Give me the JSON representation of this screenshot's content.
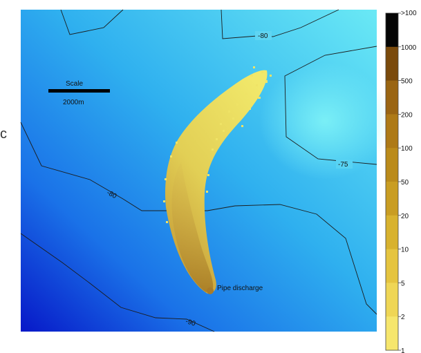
{
  "panel_label": "c",
  "scale_bar": {
    "title": "Scale",
    "distance": "2000m"
  },
  "annotation": "Pipe discharge",
  "contours": [
    {
      "label": "-80"
    },
    {
      "label": "-75"
    },
    {
      "label": "-80"
    },
    {
      "label": "-90"
    }
  ],
  "colorbar": {
    "tick_labels": [
      ">100",
      "1000",
      "500",
      "200",
      "100",
      "50",
      "20",
      "10",
      "5",
      "2",
      "1"
    ],
    "colors": [
      "#050505",
      "#7a4a0c",
      "#9a6512",
      "#ae7a16",
      "#bb8b1a",
      "#c99d22",
      "#d8b22e",
      "#e5c43f",
      "#efd655",
      "#f6e66c",
      "#fdf982"
    ]
  },
  "colors": {
    "water_light": "#62e4f2",
    "water_deep": "#0d2ad6",
    "plume_outer": "#e9df52",
    "plume_core": "#b98a2e"
  }
}
